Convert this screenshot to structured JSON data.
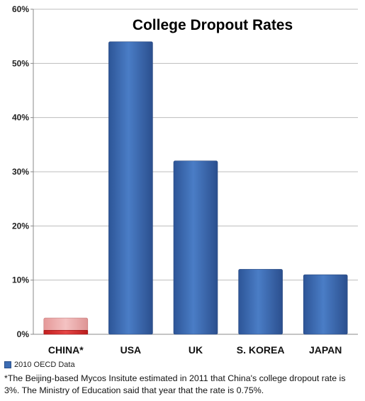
{
  "chart_data": {
    "type": "bar",
    "title": "College Dropout Rates",
    "categories": [
      "CHINA*",
      "USA",
      "UK",
      "S. KOREA",
      "JAPAN"
    ],
    "series": [
      {
        "name": "2010 OECD Data",
        "values": [
          null,
          54,
          32,
          12,
          11
        ]
      }
    ],
    "china_estimates": {
      "mycos_estimate": 3,
      "ministry_of_education": 0.75
    },
    "ylim": [
      0,
      60
    ],
    "yticks": [
      "0%",
      "10%",
      "20%",
      "30%",
      "40%",
      "50%",
      "60%"
    ],
    "grid": true,
    "legend_position": "bottom-left",
    "bar_color": "#3c6cb3",
    "china_color_light": "#e9a6a6",
    "china_color_dark": "#d22e2e"
  },
  "legend_label": "2010 OECD Data",
  "footnote": "*The Beijing-based  Mycos Insitute estimated in 2011 that China's college dropout rate is 3%. The Ministry of Education said that year that the rate is 0.75%."
}
